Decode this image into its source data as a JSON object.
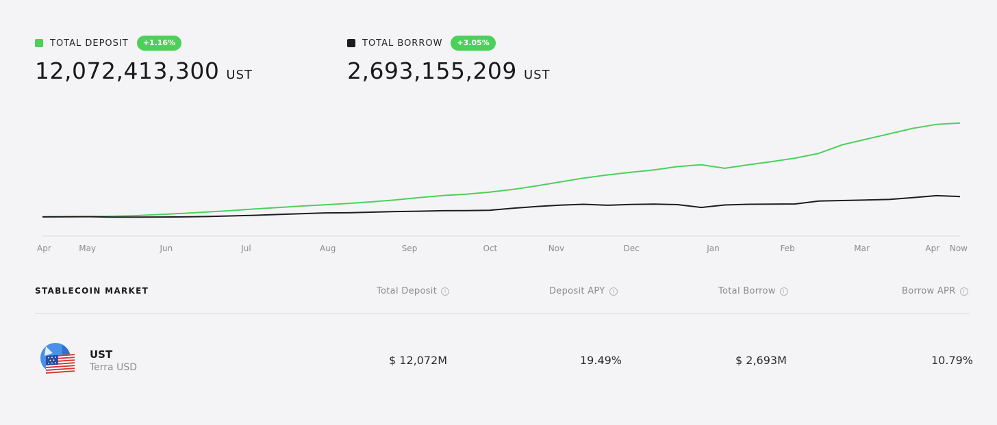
{
  "stats": {
    "deposit": {
      "label": "TOTAL DEPOSIT",
      "change": "+1.16%",
      "value": "12,072,413,300",
      "unit": "UST",
      "color": "#4cd05a"
    },
    "borrow": {
      "label": "TOTAL BORROW",
      "change": "+3.05%",
      "value": "2,693,155,209",
      "unit": "UST",
      "color": "#1c1c1c"
    },
    "badge_color": "#4cd05a"
  },
  "chart_data": {
    "type": "line",
    "x_ticks": [
      "Apr",
      "May",
      "Jun",
      "Jul",
      "Aug",
      "Sep",
      "Oct",
      "Nov",
      "Dec",
      "Jan",
      "Feb",
      "Mar",
      "Apr",
      "Now"
    ],
    "series": [
      {
        "name": "TOTAL DEPOSIT",
        "color": "#4cd05a",
        "values": [
          0.1,
          0.12,
          0.14,
          0.18,
          0.26,
          0.4,
          0.55,
          0.72,
          0.9,
          1.1,
          1.28,
          1.48,
          1.63,
          1.82,
          2.02,
          2.26,
          2.55,
          2.82,
          3.0,
          3.25,
          3.6,
          4.05,
          4.55,
          5.05,
          5.45,
          5.78,
          6.1,
          6.52,
          6.75,
          6.3,
          6.75,
          7.15,
          7.6,
          8.2,
          9.3,
          10.0,
          10.7,
          11.4,
          11.9,
          12.07
        ]
      },
      {
        "name": "TOTAL BORROW",
        "color": "#1c1c1c",
        "values": [
          0.1,
          0.11,
          0.12,
          0.07,
          0.07,
          0.08,
          0.1,
          0.14,
          0.22,
          0.3,
          0.4,
          0.5,
          0.6,
          0.62,
          0.7,
          0.78,
          0.82,
          0.88,
          0.9,
          0.94,
          1.2,
          1.42,
          1.6,
          1.7,
          1.58,
          1.68,
          1.72,
          1.66,
          1.3,
          1.62,
          1.7,
          1.72,
          1.75,
          2.12,
          2.18,
          2.25,
          2.32,
          2.55,
          2.8,
          2.69
        ]
      }
    ],
    "ylim": [
      0,
      14.5
    ],
    "grid": false
  },
  "market": {
    "title": "STABLECOIN MARKET",
    "columns": [
      "Total Deposit",
      "Deposit APY",
      "Total Borrow",
      "Borrow APR"
    ],
    "info_glyph": "i",
    "rows": [
      {
        "icon": "ust-flag-icon",
        "symbol": "UST",
        "name": "Terra USD",
        "total_deposit": "$ 12,072M",
        "deposit_apy": "19.49%",
        "total_borrow": "$ 2,693M",
        "borrow_apr": "10.79%"
      }
    ]
  }
}
